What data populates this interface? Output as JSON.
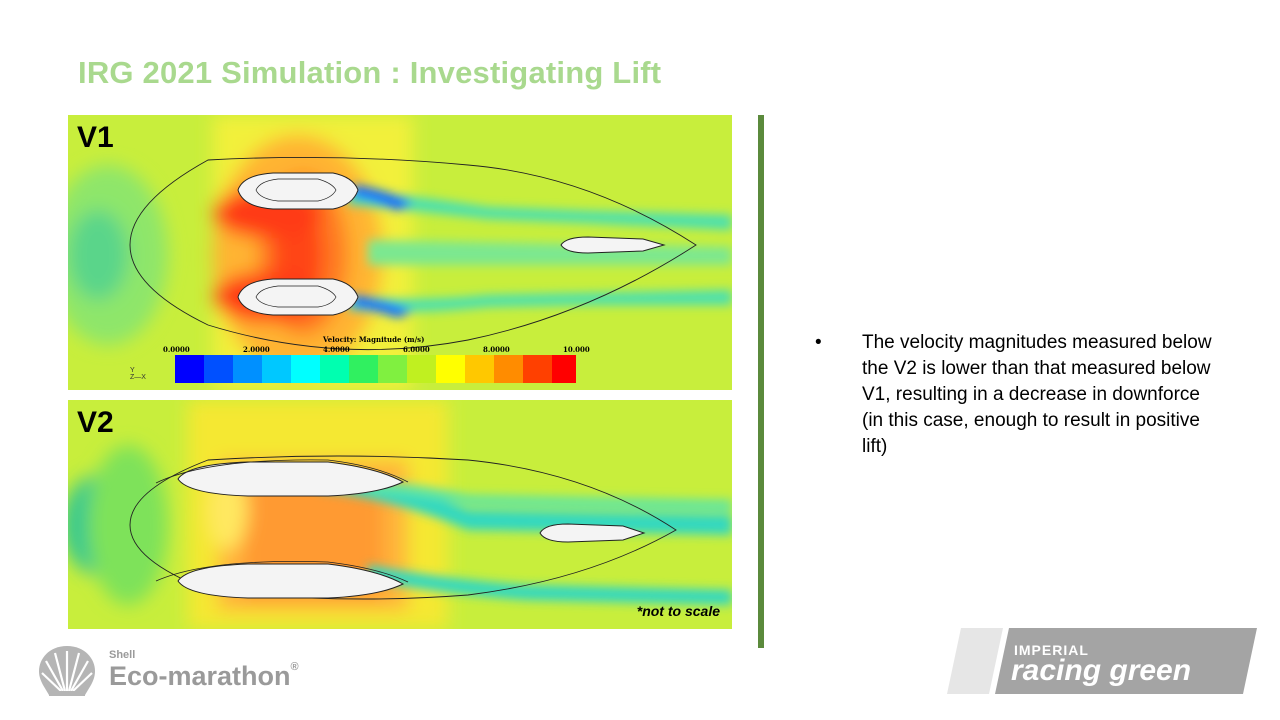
{
  "slide": {
    "title": "IRG 2021 Simulation : Investigating Lift",
    "panel_v1": {
      "label": "V1"
    },
    "panel_v2": {
      "label": "V2",
      "note": "*not to scale"
    },
    "legend": {
      "title": "Velocity: Magnitude (m/s)",
      "ticks": [
        "0.0000",
        "2.0000",
        "4.0000",
        "6.0000",
        "8.0000",
        "10.000"
      ],
      "colors": [
        "#0000ff",
        "#0050ff",
        "#0090ff",
        "#00c8ff",
        "#00ffff",
        "#00ffb0",
        "#30f060",
        "#80f040",
        "#c0f020",
        "#ffff00",
        "#ffc800",
        "#ff8c00",
        "#ff4000",
        "#ff0000"
      ]
    },
    "bullet": {
      "symbol": "•",
      "text": "The velocity magnitudes measured below the V2 is lower than that measured below V1, resulting in a decrease in downforce (in this case, enough to result in positive lift)"
    },
    "logo_left": {
      "shell": "Shell",
      "name": "Eco-marathon",
      "reg": "®"
    },
    "logo_right": {
      "top": "IMPERIAL",
      "bottom": "racing green"
    },
    "colors": {
      "title": "#a9d98e",
      "divider": "#5b8a3c",
      "field_bg": "#c8ee3c"
    }
  }
}
